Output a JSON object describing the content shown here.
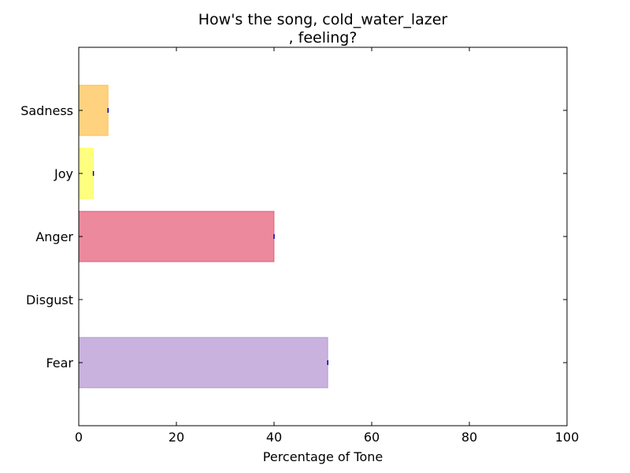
{
  "chart_data": {
    "type": "bar",
    "orientation": "horizontal",
    "title": "How's the song, cold_water_lazer\n, feeling?",
    "title_lines": [
      "How's the song, cold_water_lazer",
      ", feeling?"
    ],
    "xlabel": "Percentage of Tone",
    "ylabel": "",
    "xlim": [
      0,
      100
    ],
    "xticks": [
      0,
      20,
      40,
      60,
      80,
      100
    ],
    "categories": [
      "Fear",
      "Disgust",
      "Anger",
      "Joy",
      "Sadness"
    ],
    "values": [
      51,
      0,
      40,
      3,
      6
    ],
    "colors": [
      "#9467bd",
      "#2ca02c",
      "#dc143c",
      "#ffff00",
      "#ffa500"
    ],
    "grid": false,
    "legend": "none"
  }
}
